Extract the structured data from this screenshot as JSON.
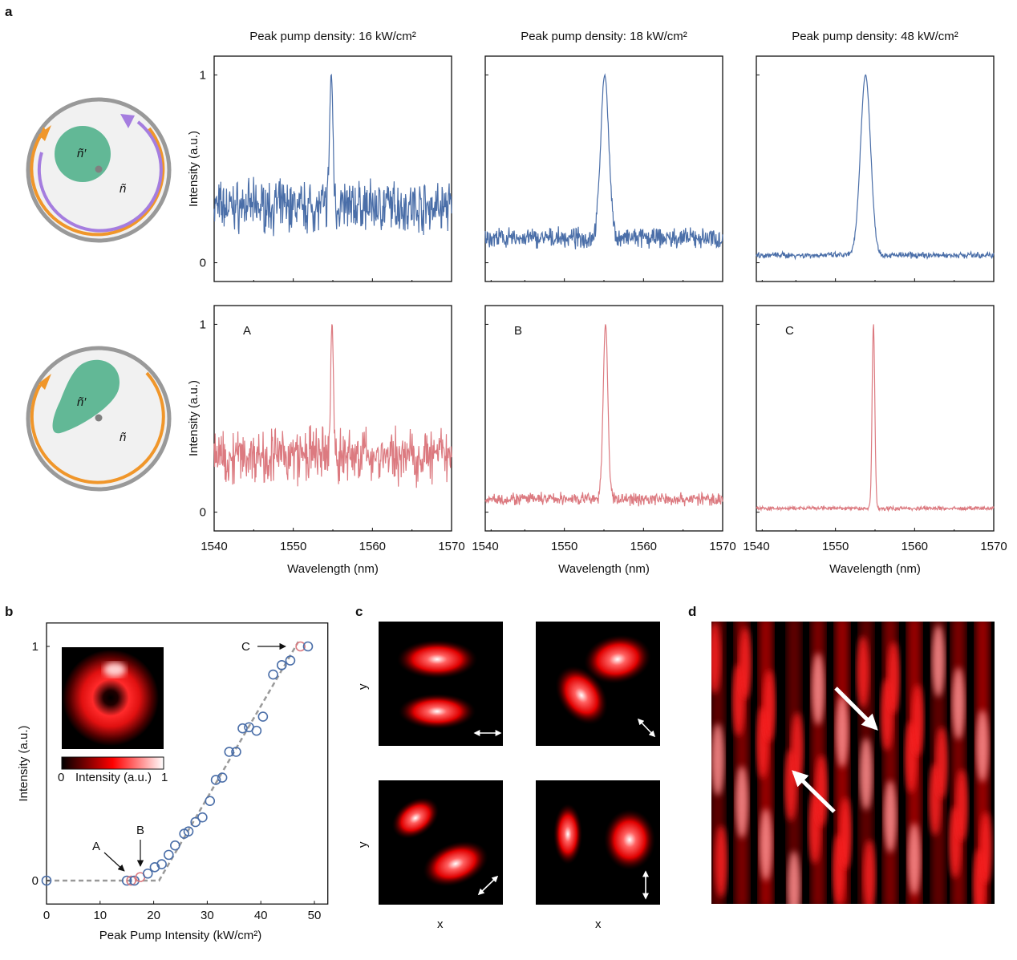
{
  "panel_labels": {
    "a": "a",
    "b": "b",
    "c": "c",
    "d": "d"
  },
  "diagram": {
    "inner_label": "ñ′",
    "outer_label": "ñ",
    "colors": {
      "ring": "#999999",
      "disk": "#f1f1f1",
      "region": "#62b896",
      "cw_arrow": "#f0962a",
      "ccw_arrow": "#a57ddf",
      "dot": "#808080"
    }
  },
  "colors": {
    "top_series": "#4a6ea8",
    "bottom_series": "#dc7a80",
    "scatter_blue": "#4a6ea8",
    "scatter_red": "#dc7a80",
    "fit_line": "#999999"
  },
  "chart_data": [
    {
      "type": "line",
      "panel": "a",
      "columns": [
        {
          "title": "Peak pump density: 16 kW/cm²"
        },
        {
          "title": "Peak pump density: 18 kW/cm²"
        },
        {
          "title": "Peak pump density: 48 kW/cm²"
        }
      ],
      "xlabel": "Wavelength (nm)",
      "ylabel": "Intensity (a.u.)",
      "xlim": [
        1540,
        1570
      ],
      "xticks": [
        "1540",
        "1550",
        "1560",
        "1570"
      ],
      "ylim": [
        -0.1,
        1.1
      ],
      "yticks": [
        "0",
        "1"
      ],
      "rows": [
        {
          "series": [
            {
              "peak_nm": 1554.8,
              "peak_value": 1,
              "fwhm_nm": 0.5,
              "baseline": 0.3,
              "noise": 0.1
            },
            {
              "peak_nm": 1555.1,
              "peak_value": 1,
              "fwhm_nm": 1.2,
              "baseline": 0.13,
              "noise": 0.04
            },
            {
              "peak_nm": 1553.8,
              "peak_value": 1,
              "fwhm_nm": 1.5,
              "baseline": 0.04,
              "noise": 0.012
            }
          ]
        },
        {
          "series": [
            {
              "label": "A",
              "peak_nm": 1554.9,
              "peak_value": 1,
              "fwhm_nm": 0.4,
              "baseline": 0.3,
              "noise": 0.11
            },
            {
              "label": "B",
              "peak_nm": 1555.2,
              "peak_value": 1,
              "fwhm_nm": 0.7,
              "baseline": 0.07,
              "noise": 0.025
            },
            {
              "label": "C",
              "peak_nm": 1554.8,
              "peak_value": 1,
              "fwhm_nm": 0.4,
              "baseline": 0.02,
              "noise": 0.008
            }
          ]
        }
      ]
    },
    {
      "type": "scatter",
      "panel": "b",
      "xlabel": "Peak Pump Intensity (kW/cm²)",
      "ylabel": "Intensity (a.u.)",
      "xlim": [
        0,
        52.5
      ],
      "ylim": [
        -0.1,
        1.1
      ],
      "xticks": [
        "0",
        "10",
        "20",
        "30",
        "40",
        "50"
      ],
      "yticks": [
        "0",
        "1"
      ],
      "points": [
        {
          "x": 0,
          "y": 0,
          "c": "blue"
        },
        {
          "x": 15.0,
          "y": 0,
          "c": "blue"
        },
        {
          "x": 15.8,
          "y": 0,
          "c": "red"
        },
        {
          "x": 16.4,
          "y": 0,
          "c": "blue"
        },
        {
          "x": 17.5,
          "y": 0.015,
          "c": "red"
        },
        {
          "x": 18.9,
          "y": 0.03,
          "c": "blue"
        },
        {
          "x": 20.2,
          "y": 0.057,
          "c": "blue"
        },
        {
          "x": 21.5,
          "y": 0.07,
          "c": "blue"
        },
        {
          "x": 22.8,
          "y": 0.11,
          "c": "blue"
        },
        {
          "x": 24.0,
          "y": 0.15,
          "c": "blue"
        },
        {
          "x": 25.7,
          "y": 0.2,
          "c": "blue"
        },
        {
          "x": 26.5,
          "y": 0.21,
          "c": "blue"
        },
        {
          "x": 27.8,
          "y": 0.25,
          "c": "blue"
        },
        {
          "x": 29.1,
          "y": 0.27,
          "c": "blue"
        },
        {
          "x": 30.5,
          "y": 0.34,
          "c": "blue"
        },
        {
          "x": 31.6,
          "y": 0.43,
          "c": "blue"
        },
        {
          "x": 32.8,
          "y": 0.44,
          "c": "blue"
        },
        {
          "x": 34.1,
          "y": 0.55,
          "c": "blue"
        },
        {
          "x": 35.4,
          "y": 0.55,
          "c": "blue"
        },
        {
          "x": 36.6,
          "y": 0.65,
          "c": "blue"
        },
        {
          "x": 37.8,
          "y": 0.655,
          "c": "blue"
        },
        {
          "x": 39.2,
          "y": 0.64,
          "c": "blue"
        },
        {
          "x": 40.4,
          "y": 0.7,
          "c": "blue"
        },
        {
          "x": 42.3,
          "y": 0.88,
          "c": "blue"
        },
        {
          "x": 43.9,
          "y": 0.92,
          "c": "blue"
        },
        {
          "x": 45.5,
          "y": 0.94,
          "c": "blue"
        },
        {
          "x": 47.4,
          "y": 1.0,
          "c": "red"
        },
        {
          "x": 48.8,
          "y": 1.0,
          "c": "blue"
        }
      ],
      "fit_line": [
        {
          "x": 0,
          "y": 0
        },
        {
          "x": 21,
          "y": 0
        },
        {
          "x": 47,
          "y": 1.02
        }
      ],
      "annotations": [
        {
          "text": "A"
        },
        {
          "text": "B"
        },
        {
          "text": "C"
        }
      ],
      "inset": {
        "colorbar_min": "0",
        "colorbar_label": "Intensity (a.u.)",
        "colorbar_max": "1"
      }
    }
  ],
  "panel_c": {
    "xlabel": "x",
    "ylabel": "y"
  }
}
